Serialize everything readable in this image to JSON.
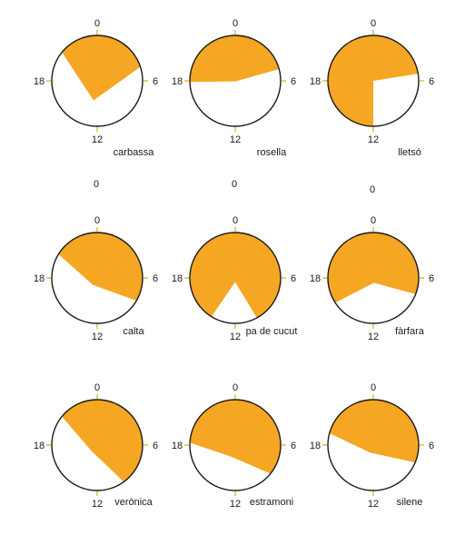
{
  "chart_data": {
    "type": "polar-area",
    "colors": {
      "fill": "#F5A623",
      "outline": "#1a1a1a",
      "tick": "#E6C24A"
    },
    "axis": {
      "range": [
        0,
        24
      ],
      "ticks": [
        0,
        6,
        12,
        18
      ],
      "tick_labels": [
        "0",
        "6",
        "12",
        "18"
      ]
    },
    "extra_labels": [
      "0",
      "0",
      "0"
    ],
    "charts": [
      {
        "name": "carbassa",
        "chord_start": 4.8,
        "mid": 7.3,
        "chord_end": 20.6
      },
      {
        "name": "rosella",
        "chord_start": 5.0,
        "mid": 0.2,
        "chord_end": 17.9
      },
      {
        "name": "lletsó",
        "chord_start": 5.4,
        "mid": 0.0,
        "chord_end": 12.0
      },
      {
        "name": "calta",
        "chord_start": 8.0,
        "mid": 3.0,
        "chord_end": 20.1
      },
      {
        "name": "pa de cucut",
        "chord_start": 10.1,
        "mid": 1.5,
        "chord_end": 14.1
      },
      {
        "name": "fàrfara",
        "chord_start": 7.4,
        "mid": 1.8,
        "chord_end": 15.8
      },
      {
        "name": "verònica",
        "chord_start": 9.6,
        "mid": 3.0,
        "chord_end": 20.6
      },
      {
        "name": "estramoni",
        "chord_start": 8.6,
        "mid": 4.5,
        "chord_end": 18.2
      },
      {
        "name": "silene",
        "chord_start": 7.5,
        "mid": 3.0,
        "chord_end": 19.0
      }
    ]
  }
}
